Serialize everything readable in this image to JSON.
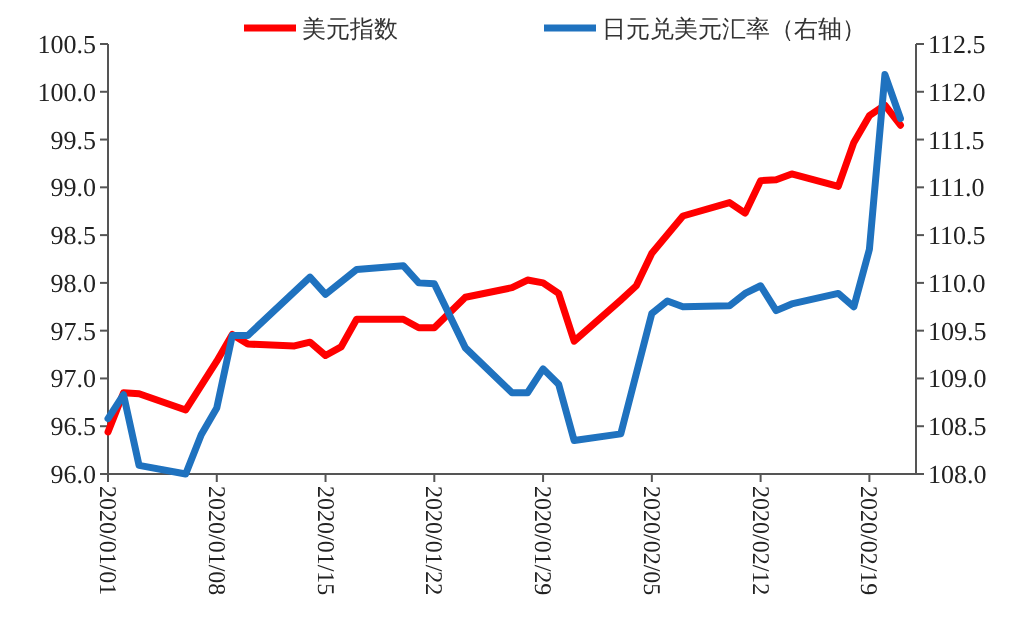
{
  "chart_data": {
    "type": "line",
    "xlim": [
      "2020-01-01",
      "2020-02-22"
    ],
    "xticks": [
      {
        "value": "2020-01-01",
        "label": "2020/01/01"
      },
      {
        "value": "2020-01-08",
        "label": "2020/01/08"
      },
      {
        "value": "2020-01-15",
        "label": "2020/01/15"
      },
      {
        "value": "2020-01-22",
        "label": "2020/01/22"
      },
      {
        "value": "2020-01-29",
        "label": "2020/01/29"
      },
      {
        "value": "2020-02-05",
        "label": "2020/02/05"
      },
      {
        "value": "2020-02-12",
        "label": "2020/02/12"
      },
      {
        "value": "2020-02-19",
        "label": "2020/02/19"
      }
    ],
    "ylim": [
      96.0,
      100.5
    ],
    "yticks": [
      {
        "value": 96.0,
        "label": "96.0"
      },
      {
        "value": 96.5,
        "label": "96.5"
      },
      {
        "value": 97.0,
        "label": "97.0"
      },
      {
        "value": 97.5,
        "label": "97.5"
      },
      {
        "value": 98.0,
        "label": "98.0"
      },
      {
        "value": 98.5,
        "label": "98.5"
      },
      {
        "value": 99.0,
        "label": "99.0"
      },
      {
        "value": 99.5,
        "label": "99.5"
      },
      {
        "value": 100.0,
        "label": "100.0"
      },
      {
        "value": 100.5,
        "label": "100.5"
      }
    ],
    "y2lim": [
      108.0,
      112.5
    ],
    "y2ticks": [
      {
        "value": 108.0,
        "label": "108.0"
      },
      {
        "value": 108.5,
        "label": "108.5"
      },
      {
        "value": 109.0,
        "label": "109.0"
      },
      {
        "value": 109.5,
        "label": "109.5"
      },
      {
        "value": 110.0,
        "label": "110.0"
      },
      {
        "value": 110.5,
        "label": "110.5"
      },
      {
        "value": 111.0,
        "label": "111.0"
      },
      {
        "value": 111.5,
        "label": "111.5"
      },
      {
        "value": 112.0,
        "label": "112.0"
      },
      {
        "value": 112.5,
        "label": "112.5"
      }
    ],
    "grid": false,
    "legend": "top",
    "series": [
      {
        "name": "美元指数",
        "color": "#ff0000",
        "x": [
          "2020-01-01",
          "2020-01-02",
          "2020-01-03",
          "2020-01-06",
          "2020-01-08",
          "2020-01-09",
          "2020-01-10",
          "2020-01-13",
          "2020-01-14",
          "2020-01-15",
          "2020-01-16",
          "2020-01-17",
          "2020-01-20",
          "2020-01-21",
          "2020-01-22",
          "2020-01-24",
          "2020-01-27",
          "2020-01-28",
          "2020-01-29",
          "2020-01-30",
          "2020-01-31",
          "2020-02-03",
          "2020-02-04",
          "2020-02-05",
          "2020-02-07",
          "2020-02-10",
          "2020-02-11",
          "2020-02-12",
          "2020-02-13",
          "2020-02-14",
          "2020-02-17",
          "2020-02-18",
          "2020-02-19",
          "2020-02-20",
          "2020-02-21"
        ],
        "values": [
          96.44,
          96.85,
          96.84,
          96.67,
          97.18,
          97.46,
          97.36,
          97.34,
          97.38,
          97.24,
          97.33,
          97.62,
          97.62,
          97.53,
          97.53,
          97.85,
          97.95,
          98.03,
          98.0,
          97.89,
          97.39,
          97.82,
          97.97,
          98.31,
          98.7,
          98.84,
          98.73,
          99.07,
          99.08,
          99.14,
          99.01,
          99.47,
          99.75,
          99.86,
          99.65
        ]
      },
      {
        "name": "日元兑美元汇率（右轴）",
        "color": "#1f72bf",
        "axis": "y2",
        "x": [
          "2020-01-01",
          "2020-01-02",
          "2020-01-03",
          "2020-01-06",
          "2020-01-07",
          "2020-01-08",
          "2020-01-09",
          "2020-01-10",
          "2020-01-14",
          "2020-01-15",
          "2020-01-17",
          "2020-01-20",
          "2020-01-21",
          "2020-01-22",
          "2020-01-24",
          "2020-01-27",
          "2020-01-28",
          "2020-01-29",
          "2020-01-30",
          "2020-01-31",
          "2020-02-03",
          "2020-02-05",
          "2020-02-06",
          "2020-02-07",
          "2020-02-10",
          "2020-02-11",
          "2020-02-12",
          "2020-02-13",
          "2020-02-14",
          "2020-02-17",
          "2020-02-18",
          "2020-02-19",
          "2020-02-20",
          "2020-02-21"
        ],
        "values": [
          108.58,
          108.83,
          108.09,
          108.0,
          108.41,
          108.69,
          109.45,
          109.45,
          110.06,
          109.88,
          110.14,
          110.18,
          110.0,
          109.99,
          109.32,
          108.85,
          108.85,
          109.1,
          108.94,
          108.35,
          108.42,
          109.68,
          109.81,
          109.75,
          109.76,
          109.89,
          109.97,
          109.71,
          109.78,
          109.89,
          109.75,
          110.35,
          112.18,
          111.72
        ]
      }
    ]
  }
}
